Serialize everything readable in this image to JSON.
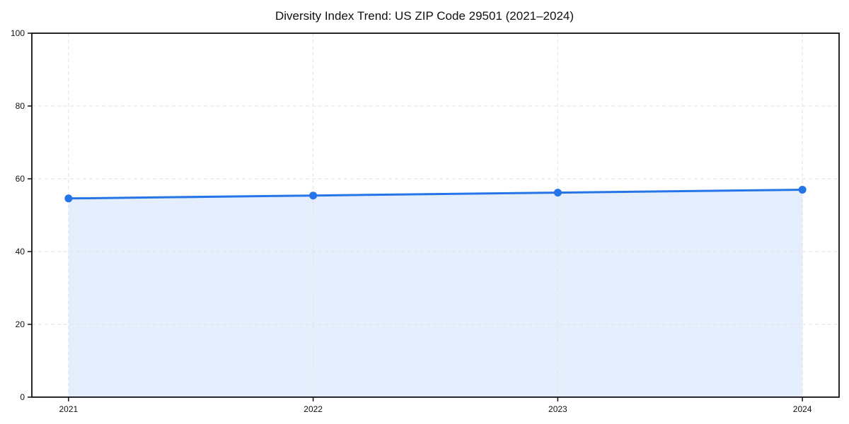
{
  "title": "Diversity Index Trend: US ZIP Code 29501 (2021–2024)",
  "colors": {
    "line": "#2575e8",
    "marker": "#2575e8",
    "fill": "rgba(37,117,232,0.12)",
    "grid": "#e2e2e2",
    "spine": "#111111",
    "tick_text": "#111111",
    "background": "#ffffff"
  },
  "chart_data": {
    "type": "area",
    "title": "Diversity Index Trend: US ZIP Code 29501 (2021–2024)",
    "x": [
      2021,
      2022,
      2023,
      2024
    ],
    "series": [
      {
        "name": "Diversity Index",
        "values": [
          54.6,
          55.4,
          56.2,
          57.0
        ]
      }
    ],
    "xlabel": "",
    "ylabel": "",
    "ylim": [
      0,
      100
    ],
    "yticks": [
      0,
      20,
      40,
      60,
      80,
      100
    ],
    "xticks": [
      2021,
      2022,
      2023,
      2024
    ],
    "xtick_labels": [
      "2021",
      "2022",
      "2023",
      "2024"
    ],
    "ytick_labels": [
      "0",
      "20",
      "40",
      "60",
      "80",
      "100"
    ],
    "x_margin_frac": 0.05,
    "grid": true,
    "grid_style": "dashed",
    "legend": "none",
    "marker": "circle",
    "line_width": 3,
    "marker_radius": 5.5
  }
}
